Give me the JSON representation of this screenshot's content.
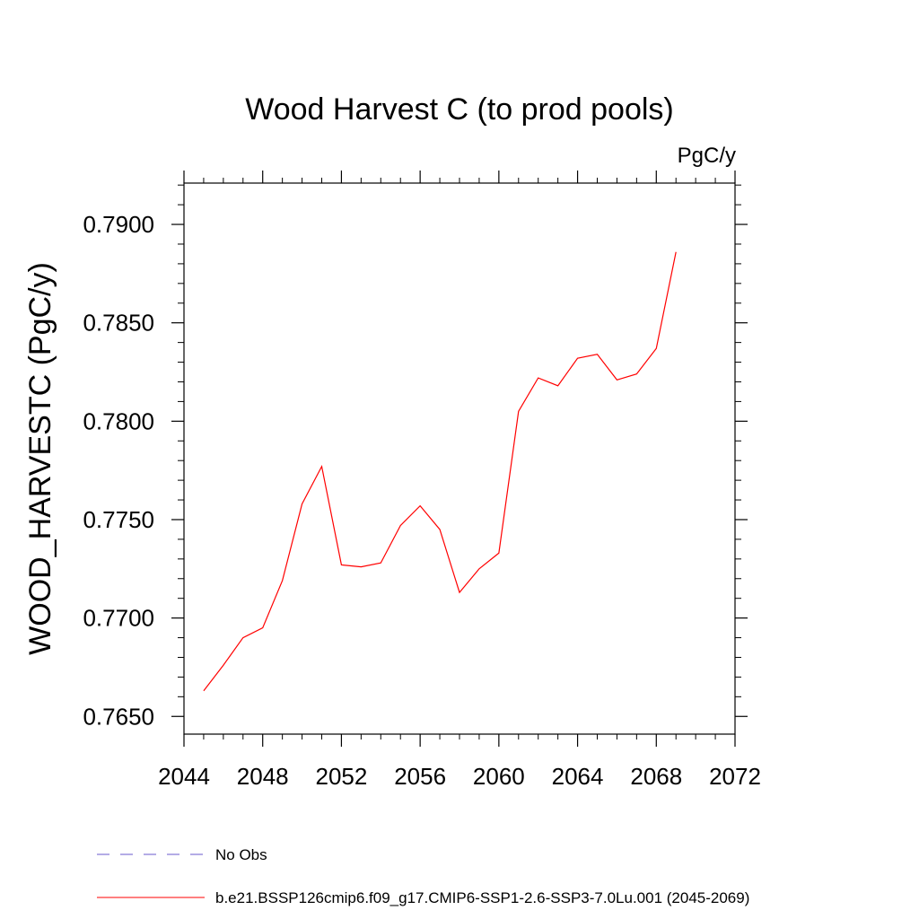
{
  "chart_data": {
    "type": "line",
    "title": "Wood Harvest C (to prod pools)",
    "units": "PgC/y",
    "xlabel": "",
    "ylabel": "WOOD_HARVESTC  (PgC/y)",
    "xlim": [
      2044,
      2072
    ],
    "ylim": [
      0.7641,
      0.7921
    ],
    "x_ticks": [
      2044,
      2048,
      2052,
      2056,
      2060,
      2064,
      2068,
      2072
    ],
    "x_tick_labels": [
      "2044",
      "2048",
      "2052",
      "2056",
      "2060",
      "2064",
      "2068",
      "2072"
    ],
    "y_ticks": [
      0.765,
      0.77,
      0.775,
      0.78,
      0.785,
      0.79
    ],
    "y_tick_labels": [
      "0.7650",
      "0.7700",
      "0.7750",
      "0.7800",
      "0.7850",
      "0.7900"
    ],
    "grid": false,
    "legend_position": "bottom",
    "series": [
      {
        "name": "b.e21.BSSP126cmip6.f09_g17.CMIP6-SSP1-2.6-SSP3-7.0Lu.001 (2045-2069)",
        "color": "#ff0000",
        "style": "solid",
        "x": [
          2045,
          2046,
          2047,
          2048,
          2049,
          2050,
          2051,
          2052,
          2053,
          2054,
          2055,
          2056,
          2057,
          2058,
          2059,
          2060,
          2061,
          2062,
          2063,
          2064,
          2065,
          2066,
          2067,
          2068,
          2069
        ],
        "y": [
          0.7663,
          0.7676,
          0.769,
          0.7695,
          0.7719,
          0.7758,
          0.7777,
          0.7727,
          0.7726,
          0.7728,
          0.7747,
          0.7757,
          0.7745,
          0.7713,
          0.7725,
          0.7733,
          0.7805,
          0.7822,
          0.7818,
          0.7832,
          0.7834,
          0.7821,
          0.7824,
          0.7837,
          0.7886
        ]
      }
    ],
    "legend_entries": [
      {
        "label": "No Obs",
        "color": "#6a5acd",
        "style": "dashed"
      },
      {
        "label": "b.e21.BSSP126cmip6.f09_g17.CMIP6-SSP1-2.6-SSP3-7.0Lu.001 (2045-2069)",
        "color": "#ff0000",
        "style": "solid"
      }
    ]
  }
}
